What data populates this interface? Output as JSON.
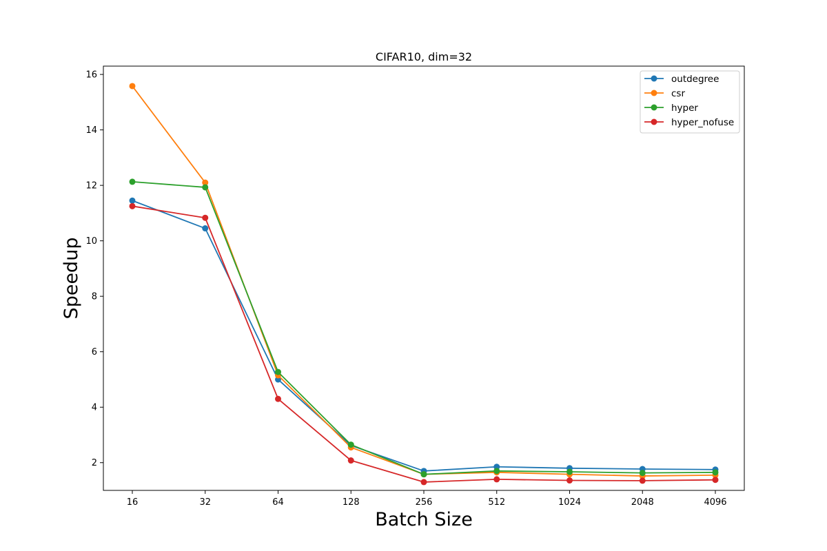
{
  "chart_data": {
    "type": "line",
    "title": "CIFAR10, dim=32",
    "xlabel": "Batch Size",
    "ylabel": "Speedup",
    "x": [
      "16",
      "32",
      "64",
      "128",
      "256",
      "512",
      "1024",
      "2048",
      "4096"
    ],
    "ylim": [
      1.0,
      16.3
    ],
    "yticks": [
      2,
      4,
      6,
      8,
      10,
      12,
      14,
      16
    ],
    "grid": false,
    "legend_position": "top-right",
    "series": [
      {
        "name": "outdegree",
        "color": "#1f77b4",
        "values": [
          11.45,
          10.45,
          5.0,
          2.62,
          1.7,
          1.85,
          1.8,
          1.77,
          1.75
        ]
      },
      {
        "name": "csr",
        "color": "#ff7f0e",
        "values": [
          15.58,
          12.1,
          5.15,
          2.55,
          1.58,
          1.65,
          1.58,
          1.52,
          1.55
        ]
      },
      {
        "name": "hyper",
        "color": "#2ca02c",
        "values": [
          12.13,
          11.93,
          5.27,
          2.65,
          1.58,
          1.7,
          1.67,
          1.63,
          1.65
        ]
      },
      {
        "name": "hyper_nofuse",
        "color": "#d62728",
        "values": [
          11.25,
          10.83,
          4.3,
          2.08,
          1.3,
          1.4,
          1.36,
          1.35,
          1.38
        ]
      }
    ]
  }
}
